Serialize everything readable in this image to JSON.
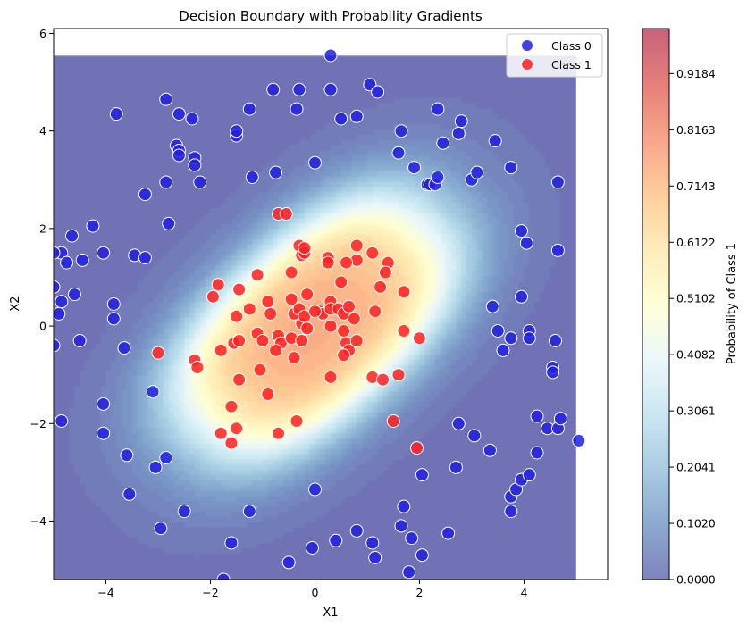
{
  "chart_data": {
    "type": "scatter",
    "title": "Decision Boundary with Probability Gradients",
    "xlabel": "X1",
    "ylabel": "X2",
    "xlim": [
      -5.0,
      5.6
    ],
    "ylim": [
      -5.2,
      6.1
    ],
    "contour_extent": {
      "x": [
        -5.0,
        5.0
      ],
      "y": [
        -5.2,
        5.55
      ]
    },
    "xticks": [
      -4,
      -2,
      0,
      2,
      4
    ],
    "xtick_labels": [
      "−4",
      "−2",
      "0",
      "2",
      "4"
    ],
    "yticks": [
      -4,
      -2,
      0,
      2,
      4,
      6
    ],
    "ytick_labels": [
      "−4",
      "−2",
      "0",
      "2",
      "4",
      "6"
    ],
    "legend_position": "top-right",
    "grid": false,
    "colormap": "RdYlBu_r",
    "colorbar": {
      "label": "Probability of Class 1",
      "range": [
        0,
        1
      ],
      "ticks": [
        0.0,
        0.102,
        0.2041,
        0.3061,
        0.4082,
        0.5102,
        0.6122,
        0.7143,
        0.8163,
        0.9184
      ],
      "tick_labels": [
        "0.0000",
        "0.1020",
        "0.2041",
        "0.3061",
        "0.4082",
        "0.5102",
        "0.6122",
        "0.7143",
        "0.8163",
        "0.9184"
      ]
    },
    "series": [
      {
        "name": "Class 0",
        "color": "#2020e0",
        "points": [
          [
            -3.8,
            4.35
          ],
          [
            -2.85,
            4.65
          ],
          [
            -2.6,
            4.35
          ],
          [
            -2.35,
            4.25
          ],
          [
            -1.5,
            3.9
          ],
          [
            -1.5,
            4.0
          ],
          [
            -1.25,
            4.45
          ],
          [
            -0.8,
            4.85
          ],
          [
            -0.3,
            4.85
          ],
          [
            -0.35,
            4.45
          ],
          [
            0.3,
            5.55
          ],
          [
            0.3,
            4.85
          ],
          [
            0.5,
            4.25
          ],
          [
            0.8,
            4.3
          ],
          [
            1.05,
            4.95
          ],
          [
            1.2,
            4.8
          ],
          [
            -2.65,
            3.7
          ],
          [
            -2.6,
            3.6
          ],
          [
            -2.6,
            3.5
          ],
          [
            -2.3,
            3.45
          ],
          [
            -2.3,
            3.3
          ],
          [
            -0.75,
            3.15
          ],
          [
            0.0,
            3.35
          ],
          [
            -2.2,
            2.95
          ],
          [
            -1.2,
            3.05
          ],
          [
            -3.25,
            2.7
          ],
          [
            -2.85,
            2.95
          ],
          [
            -2.8,
            2.1
          ],
          [
            -4.25,
            2.05
          ],
          [
            -4.65,
            1.85
          ],
          [
            -4.05,
            1.5
          ],
          [
            -4.85,
            1.5
          ],
          [
            -4.45,
            1.35
          ],
          [
            -4.75,
            1.3
          ],
          [
            -3.45,
            1.45
          ],
          [
            -3.25,
            1.4
          ],
          [
            -5.0,
            1.5
          ],
          [
            -5.0,
            0.8
          ],
          [
            -4.6,
            0.65
          ],
          [
            -4.85,
            0.5
          ],
          [
            -4.9,
            0.25
          ],
          [
            -3.85,
            0.45
          ],
          [
            -3.85,
            0.15
          ],
          [
            -4.5,
            -0.3
          ],
          [
            -5.0,
            -0.4
          ],
          [
            -3.65,
            -0.45
          ],
          [
            1.65,
            4.0
          ],
          [
            2.35,
            4.45
          ],
          [
            2.8,
            4.2
          ],
          [
            1.6,
            3.55
          ],
          [
            2.45,
            3.75
          ],
          [
            2.75,
            3.95
          ],
          [
            1.9,
            3.25
          ],
          [
            2.15,
            2.9
          ],
          [
            2.2,
            2.9
          ],
          [
            2.3,
            2.9
          ],
          [
            2.35,
            3.05
          ],
          [
            3.0,
            3.0
          ],
          [
            3.1,
            3.15
          ],
          [
            3.45,
            3.8
          ],
          [
            3.75,
            3.25
          ],
          [
            4.65,
            2.95
          ],
          [
            3.95,
            1.95
          ],
          [
            4.05,
            1.7
          ],
          [
            4.65,
            1.55
          ],
          [
            3.95,
            0.6
          ],
          [
            3.4,
            0.4
          ],
          [
            3.5,
            -0.1
          ],
          [
            3.6,
            -0.5
          ],
          [
            3.75,
            -0.25
          ],
          [
            4.1,
            -0.1
          ],
          [
            4.1,
            -0.25
          ],
          [
            4.6,
            -0.3
          ],
          [
            4.55,
            -0.85
          ],
          [
            4.55,
            -0.95
          ],
          [
            -4.05,
            -1.6
          ],
          [
            -3.1,
            -1.35
          ],
          [
            -4.85,
            -1.95
          ],
          [
            -4.05,
            -2.2
          ],
          [
            -3.6,
            -2.65
          ],
          [
            -2.85,
            -2.7
          ],
          [
            -3.05,
            -2.9
          ],
          [
            -3.55,
            -3.45
          ],
          [
            -2.5,
            -3.8
          ],
          [
            -2.95,
            -4.15
          ],
          [
            -1.6,
            -4.45
          ],
          [
            -1.25,
            -3.8
          ],
          [
            -0.5,
            -4.85
          ],
          [
            -0.05,
            -4.55
          ],
          [
            0.0,
            -3.35
          ],
          [
            0.4,
            -4.4
          ],
          [
            0.8,
            -4.2
          ],
          [
            1.1,
            -4.45
          ],
          [
            1.15,
            -4.75
          ],
          [
            1.7,
            -3.7
          ],
          [
            1.65,
            -4.1
          ],
          [
            1.85,
            -4.35
          ],
          [
            1.8,
            -5.05
          ],
          [
            2.05,
            -4.7
          ],
          [
            2.05,
            -3.05
          ],
          [
            2.55,
            -4.25
          ],
          [
            2.7,
            -2.9
          ],
          [
            2.75,
            -2.0
          ],
          [
            3.05,
            -2.25
          ],
          [
            3.35,
            -2.55
          ],
          [
            3.75,
            -3.5
          ],
          [
            3.75,
            -3.8
          ],
          [
            3.85,
            -3.35
          ],
          [
            3.95,
            -3.15
          ],
          [
            4.1,
            -3.05
          ],
          [
            4.25,
            -2.6
          ],
          [
            4.25,
            -1.85
          ],
          [
            4.45,
            -2.1
          ],
          [
            4.65,
            -2.1
          ],
          [
            4.7,
            -1.9
          ],
          [
            5.05,
            -2.35
          ],
          [
            -1.75,
            -5.2
          ]
        ]
      },
      {
        "name": "Class 1",
        "color": "#ff2020",
        "points": [
          [
            -0.7,
            2.3
          ],
          [
            -0.55,
            2.3
          ],
          [
            -0.3,
            1.65
          ],
          [
            -0.25,
            1.45
          ],
          [
            -0.2,
            1.5
          ],
          [
            -0.2,
            1.6
          ],
          [
            -0.45,
            1.1
          ],
          [
            0.25,
            1.4
          ],
          [
            0.25,
            1.3
          ],
          [
            0.8,
            1.65
          ],
          [
            0.8,
            1.35
          ],
          [
            1.1,
            1.5
          ],
          [
            1.4,
            1.3
          ],
          [
            1.35,
            1.1
          ],
          [
            0.5,
            0.9
          ],
          [
            0.6,
            1.3
          ],
          [
            -1.1,
            1.05
          ],
          [
            -1.85,
            0.85
          ],
          [
            -1.95,
            0.6
          ],
          [
            -1.45,
            0.75
          ],
          [
            -1.25,
            0.35
          ],
          [
            -0.9,
            0.5
          ],
          [
            -0.85,
            0.25
          ],
          [
            -0.45,
            0.55
          ],
          [
            -0.15,
            0.65
          ],
          [
            0.3,
            0.5
          ],
          [
            0.1,
            0.3
          ],
          [
            0.15,
            0.25
          ],
          [
            0.3,
            0.35
          ],
          [
            0.45,
            0.35
          ],
          [
            0.55,
            0.25
          ],
          [
            0.65,
            0.4
          ],
          [
            0.75,
            0.15
          ],
          [
            1.25,
            0.8
          ],
          [
            1.15,
            0.3
          ],
          [
            1.7,
            0.7
          ],
          [
            -1.5,
            0.2
          ],
          [
            -1.1,
            -0.15
          ],
          [
            -1.0,
            -0.3
          ],
          [
            -0.7,
            -0.2
          ],
          [
            -0.65,
            -0.35
          ],
          [
            -0.45,
            -0.25
          ],
          [
            -0.4,
            0.25
          ],
          [
            -0.3,
            0.35
          ],
          [
            -0.25,
            0.05
          ],
          [
            -0.2,
            0.2
          ],
          [
            -0.15,
            -0.05
          ],
          [
            -0.25,
            -0.3
          ],
          [
            -0.75,
            -0.5
          ],
          [
            -0.4,
            -0.65
          ],
          [
            0.0,
            0.3
          ],
          [
            0.3,
            0.0
          ],
          [
            0.55,
            -0.1
          ],
          [
            0.6,
            -0.35
          ],
          [
            0.65,
            -0.5
          ],
          [
            0.8,
            -0.3
          ],
          [
            0.55,
            -0.6
          ],
          [
            1.7,
            -0.1
          ],
          [
            2.0,
            -0.25
          ],
          [
            -3.0,
            -0.55
          ],
          [
            -1.8,
            -0.5
          ],
          [
            -1.55,
            -0.35
          ],
          [
            -1.45,
            -0.3
          ],
          [
            -1.05,
            -0.9
          ],
          [
            -0.9,
            -1.4
          ],
          [
            -1.45,
            -1.1
          ],
          [
            -2.3,
            -0.7
          ],
          [
            -2.25,
            -0.85
          ],
          [
            0.3,
            -1.05
          ],
          [
            1.1,
            -1.05
          ],
          [
            1.3,
            -1.1
          ],
          [
            1.6,
            -1.0
          ],
          [
            1.5,
            -1.95
          ],
          [
            -0.35,
            -1.95
          ],
          [
            -1.6,
            -1.65
          ],
          [
            -1.5,
            -2.1
          ],
          [
            -1.8,
            -2.2
          ],
          [
            -1.6,
            -2.4
          ],
          [
            -0.7,
            -2.2
          ],
          [
            1.95,
            -2.5
          ]
        ]
      }
    ]
  }
}
